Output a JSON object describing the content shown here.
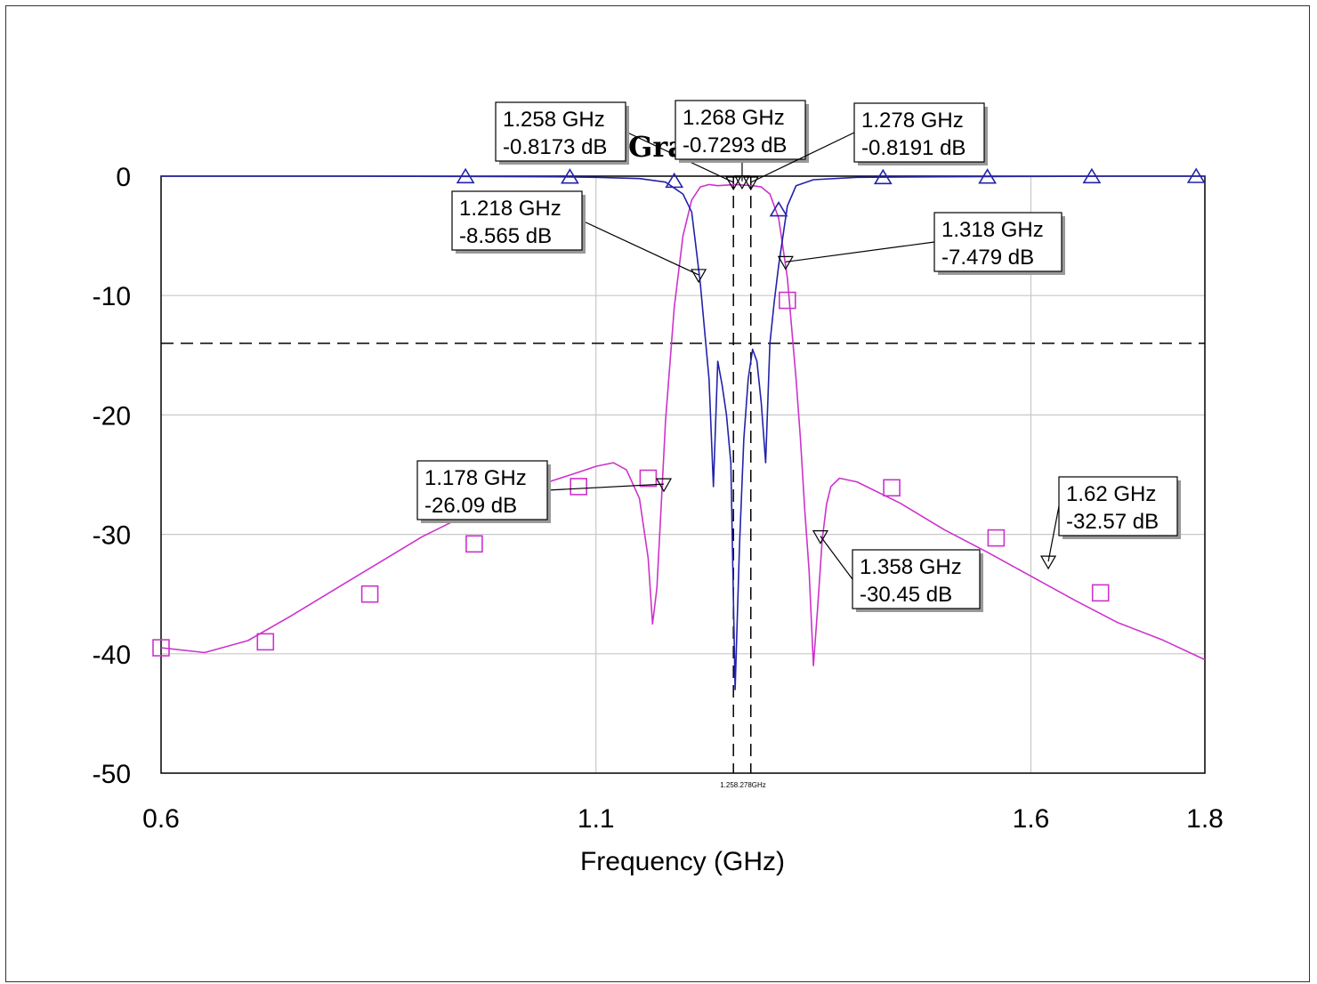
{
  "chart_data": {
    "type": "line",
    "title": "Gra",
    "xlabel": "Frequency (GHz)",
    "ylabel": "",
    "xlim": [
      0.6,
      1.8
    ],
    "ylim": [
      -50,
      0
    ],
    "grid": true,
    "x_ticks": [
      "0.6",
      "1.1",
      "1.6",
      "1.8"
    ],
    "x_tick_values": [
      0.6,
      1.1,
      1.6,
      1.8
    ],
    "y_ticks": [
      "0",
      "-10",
      "-20",
      "-30",
      "-40",
      "-50"
    ],
    "y_tick_values": [
      0,
      -10,
      -20,
      -30,
      -40,
      -50
    ],
    "threshold_level": -14,
    "vertical_markers": [
      1.258,
      1.278
    ],
    "vertical_marker_label": "1.258.278GHz",
    "series": [
      {
        "color": "#cc33cc",
        "marker": "square",
        "x": [
          0.6,
          0.65,
          0.7,
          0.75,
          0.8,
          0.85,
          0.9,
          0.95,
          1.0,
          1.05,
          1.08,
          1.1,
          1.12,
          1.135,
          1.15,
          1.16,
          1.165,
          1.17,
          1.175,
          1.18,
          1.19,
          1.2,
          1.21,
          1.22,
          1.23,
          1.24,
          1.25,
          1.26,
          1.27,
          1.28,
          1.29,
          1.3,
          1.31,
          1.32,
          1.33,
          1.335,
          1.34,
          1.345,
          1.35,
          1.355,
          1.36,
          1.365,
          1.37,
          1.38,
          1.4,
          1.45,
          1.5,
          1.55,
          1.6,
          1.65,
          1.7,
          1.75,
          1.8
        ],
        "values": [
          -39.5,
          -39.9,
          -38.9,
          -36.8,
          -34.6,
          -32.4,
          -30.2,
          -28.4,
          -26.9,
          -25.5,
          -24.8,
          -24.3,
          -24.0,
          -24.6,
          -27.0,
          -32.0,
          -37.5,
          -34.5,
          -27.5,
          -20.5,
          -11.0,
          -5.0,
          -2.0,
          -0.9,
          -0.7,
          -0.8,
          -0.75,
          -0.7,
          -0.75,
          -0.8,
          -0.9,
          -1.5,
          -3.5,
          -8.5,
          -17.0,
          -22.0,
          -28.0,
          -33.0,
          -41.0,
          -36.0,
          -30.5,
          -27.5,
          -26.0,
          -25.3,
          -25.6,
          -27.4,
          -29.6,
          -31.5,
          -33.5,
          -35.5,
          -37.4,
          -38.8,
          -40.5
        ],
        "markers_x": [
          0.6,
          0.72,
          0.84,
          0.96,
          1.08,
          1.16,
          1.32,
          1.44,
          1.56,
          1.68
        ],
        "markers_y": [
          -39.5,
          -39.0,
          -35.0,
          -30.8,
          -26.0,
          -25.3,
          -10.4,
          -26.1,
          -30.3,
          -34.9
        ]
      },
      {
        "color": "#2222aa",
        "marker": "triangle",
        "x": [
          0.6,
          0.8,
          0.95,
          1.05,
          1.1,
          1.15,
          1.18,
          1.2,
          1.21,
          1.215,
          1.22,
          1.23,
          1.235,
          1.24,
          1.245,
          1.25,
          1.255,
          1.26,
          1.265,
          1.27,
          1.275,
          1.28,
          1.285,
          1.29,
          1.295,
          1.3,
          1.305,
          1.31,
          1.315,
          1.32,
          1.33,
          1.35,
          1.4,
          1.5,
          1.6,
          1.7,
          1.8
        ],
        "values": [
          0,
          0,
          -0.02,
          -0.05,
          -0.1,
          -0.2,
          -0.5,
          -1.5,
          -3.0,
          -6.0,
          -9.0,
          -17.0,
          -26.0,
          -15.5,
          -17.5,
          -20.0,
          -24.0,
          -43.0,
          -31.0,
          -22.0,
          -17.0,
          -14.5,
          -15.5,
          -19.0,
          -24.0,
          -14.0,
          -10.5,
          -7.5,
          -5.0,
          -2.5,
          -0.8,
          -0.3,
          -0.1,
          -0.05,
          -0.02,
          0,
          0
        ],
        "markers_x": [
          0.95,
          1.07,
          1.19,
          1.31,
          1.43,
          1.55,
          1.67,
          1.79
        ],
        "markers_y": [
          -0.02,
          -0.05,
          -0.4,
          -2.8,
          -0.1,
          -0.05,
          -0.02,
          0
        ]
      }
    ],
    "marker_labels": [
      {
        "freq": "1.258 GHz",
        "value": "-0.8173 dB",
        "x": 1.258,
        "y": -0.8173
      },
      {
        "freq": "1.268 GHz",
        "value": "-0.7293 dB",
        "x": 1.268,
        "y": -0.7293
      },
      {
        "freq": "1.278 GHz",
        "value": "-0.8191 dB",
        "x": 1.278,
        "y": -0.8191
      },
      {
        "freq": "1.218 GHz",
        "value": "-8.565 dB",
        "x": 1.218,
        "y": -8.565
      },
      {
        "freq": "1.318 GHz",
        "value": "-7.479 dB",
        "x": 1.318,
        "y": -7.479
      },
      {
        "freq": "1.178 GHz",
        "value": "-26.09 dB",
        "x": 1.178,
        "y": -26.09
      },
      {
        "freq": "1.358 GHz",
        "value": "-30.45 dB",
        "x": 1.358,
        "y": -30.45
      },
      {
        "freq": "1.62 GHz",
        "value": "-32.57 dB",
        "x": 1.62,
        "y": -32.57
      }
    ]
  }
}
